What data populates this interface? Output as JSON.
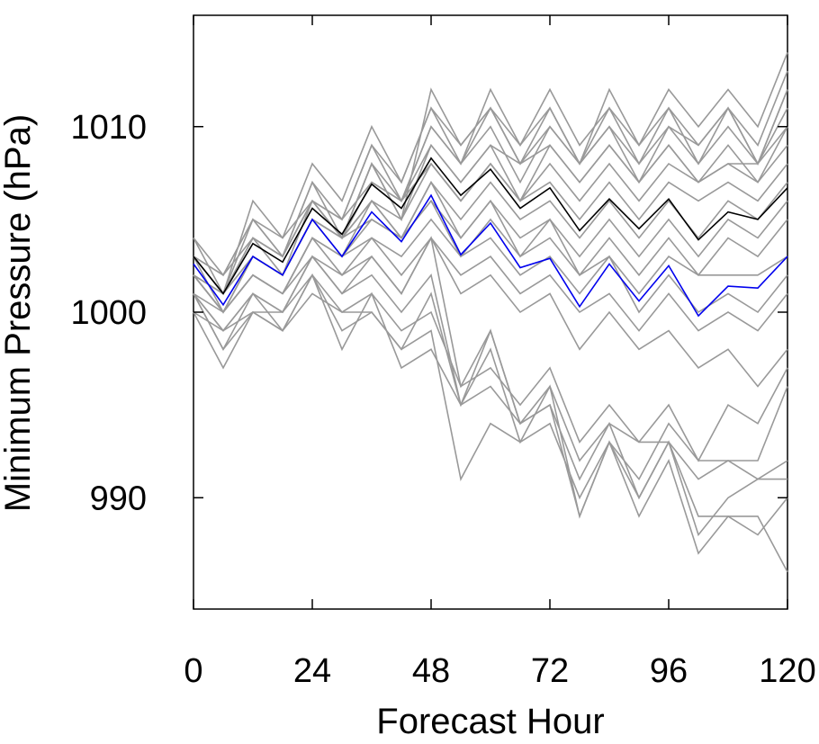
{
  "chart_data": {
    "type": "line",
    "title": "",
    "xlabel": "Forecast Hour",
    "ylabel": "Minimum Pressure (hPa)",
    "xlim": [
      0,
      120
    ],
    "ylim": [
      984,
      1016
    ],
    "xticks": [
      0,
      24,
      48,
      72,
      96,
      120
    ],
    "xtick_labels": [
      "0",
      "24",
      "48",
      "72",
      "96",
      "120"
    ],
    "yticks": [
      990,
      1000,
      1010
    ],
    "ytick_labels": [
      "990",
      "1000",
      "1010"
    ],
    "grid": false,
    "legend": "none",
    "x": [
      0,
      6,
      12,
      18,
      24,
      30,
      36,
      42,
      48,
      54,
      60,
      66,
      72,
      78,
      84,
      90,
      96,
      102,
      108,
      114,
      120
    ],
    "colors": {
      "members": "#999999",
      "mean": "#000000",
      "highlight": "#0000ee"
    },
    "members": [
      {
        "values": [
          1004,
          1001,
          1005,
          1003,
          1007,
          1004,
          1008,
          1005,
          1012,
          1009,
          1011,
          1008,
          1011,
          1008,
          1010,
          1008,
          1011,
          1009,
          1011,
          1009,
          1013
        ]
      },
      {
        "values": [
          1003,
          1001,
          1006,
          1004,
          1006,
          1005,
          1009,
          1007,
          1011,
          1008,
          1012,
          1009,
          1012,
          1009,
          1011,
          1009,
          1012,
          1010,
          1012,
          1010,
          1014
        ]
      },
      {
        "values": [
          1003,
          1002,
          1004,
          1003,
          1006,
          1004,
          1008,
          1006,
          1010,
          1008,
          1010,
          1007,
          1010,
          1008,
          1012,
          1009,
          1011,
          1008,
          1010,
          1008,
          1012
        ]
      },
      {
        "values": [
          1004,
          1002,
          1005,
          1004,
          1008,
          1006,
          1010,
          1007,
          1011,
          1009,
          1011,
          1009,
          1011,
          1008,
          1011,
          1008,
          1010,
          1009,
          1011,
          1008,
          1012
        ]
      },
      {
        "values": [
          1003,
          1002,
          1005,
          1003,
          1007,
          1005,
          1009,
          1006,
          1010,
          1008,
          1011,
          1008,
          1010,
          1008,
          1010,
          1007,
          1010,
          1008,
          1011,
          1008,
          1011
        ]
      },
      {
        "values": [
          1003,
          1001,
          1004,
          1003,
          1006,
          1004,
          1008,
          1005,
          1009,
          1007,
          1009,
          1008,
          1009,
          1007,
          1009,
          1007,
          1009,
          1007,
          1009,
          1007,
          1010
        ]
      },
      {
        "values": [
          1002,
          1001,
          1004,
          1002,
          1006,
          1005,
          1007,
          1006,
          1009,
          1007,
          1009,
          1006,
          1009,
          1007,
          1009,
          1007,
          1009,
          1007,
          1008,
          1008,
          1010
        ]
      },
      {
        "values": [
          1003,
          1001,
          1004,
          1003,
          1006,
          1004,
          1007,
          1006,
          1008,
          1006,
          1008,
          1006,
          1008,
          1006,
          1008,
          1006,
          1008,
          1007,
          1008,
          1007,
          1009
        ]
      },
      {
        "values": [
          1002,
          1001,
          1003,
          1002,
          1005,
          1004,
          1006,
          1005,
          1008,
          1006,
          1008,
          1006,
          1007,
          1005,
          1007,
          1005,
          1007,
          1006,
          1007,
          1006,
          1008
        ]
      },
      {
        "values": [
          1002,
          1000,
          1003,
          1002,
          1005,
          1004,
          1006,
          1004,
          1007,
          1005,
          1007,
          1005,
          1006,
          1004,
          1006,
          1004,
          1006,
          1004,
          1006,
          1005,
          1007
        ]
      },
      {
        "values": [
          1003,
          1000,
          1003,
          1002,
          1005,
          1003,
          1006,
          1004,
          1006,
          1004,
          1006,
          1004,
          1005,
          1003,
          1005,
          1003,
          1005,
          1003,
          1005,
          1004,
          1006
        ]
      },
      {
        "values": [
          1002,
          1000,
          1002,
          1001,
          1004,
          1003,
          1005,
          1004,
          1007,
          1004,
          1006,
          1003,
          1005,
          1002,
          1004,
          1002,
          1004,
          1002,
          1004,
          1003,
          1005
        ]
      },
      {
        "values": [
          1002,
          1001,
          1003,
          1002,
          1005,
          1004,
          1005,
          1004,
          1006,
          1003,
          1005,
          1003,
          1004,
          1002,
          1003,
          1001,
          1003,
          1002,
          1002,
          1002,
          1003
        ]
      },
      {
        "values": [
          1001,
          1000,
          1002,
          1001,
          1004,
          1003,
          1004,
          1003,
          1005,
          1003,
          1004,
          1002,
          1003,
          1001,
          1003,
          1000,
          1002,
          1000,
          1001,
          1000,
          1002
        ]
      },
      {
        "values": [
          1002,
          1000,
          1002,
          1001,
          1004,
          1002,
          1004,
          1002,
          1004,
          1002,
          1003,
          1001,
          1002,
          1000,
          1001,
          999,
          1001,
          999,
          1000,
          999,
          1001
        ]
      },
      {
        "values": [
          1001,
          999,
          1001,
          1000,
          1003,
          1001,
          1003,
          1001,
          1004,
          1001,
          1002,
          1000,
          1001,
          998,
          1000,
          998,
          999,
          997,
          998,
          996,
          998
        ]
      },
      {
        "values": [
          1002,
          1000,
          1002,
          1001,
          1003,
          1002,
          1003,
          1001,
          1004,
          996,
          997,
          995,
          997,
          993,
          995,
          993,
          995,
          992,
          995,
          994,
          997
        ]
      },
      {
        "values": [
          1001,
          999,
          1001,
          1000,
          1003,
          1001,
          1002,
          1000,
          1002,
          995,
          996,
          994,
          996,
          992,
          994,
          993,
          993,
          991,
          992,
          991,
          991
        ]
      },
      {
        "values": [
          1001,
          998,
          1001,
          999,
          1002,
          1000,
          1000,
          998,
          999,
          991,
          994,
          993,
          994,
          990,
          993,
          991,
          994,
          992,
          992,
          992,
          996
        ]
      },
      {
        "values": [
          1000,
          997,
          1000,
          999,
          1002,
          998,
          1001,
          997,
          998,
          995,
          999,
          994,
          995,
          991,
          994,
          990,
          993,
          988,
          990,
          991,
          992
        ]
      },
      {
        "values": [
          1001,
          998,
          1000,
          1000,
          1002,
          999,
          1000,
          998,
          1001,
          995,
          998,
          993,
          996,
          989,
          993,
          989,
          992,
          987,
          989,
          989,
          986
        ]
      },
      {
        "values": [
          1000,
          999,
          1000,
          999,
          1001,
          1000,
          1001,
          999,
          1000,
          996,
          999,
          994,
          995,
          989,
          993,
          990,
          993,
          989,
          989,
          988,
          990
        ]
      }
    ],
    "series": [
      {
        "role": "mean",
        "values": [
          1003,
          1001,
          1003.7,
          1002.7,
          1005.6,
          1004.2,
          1006.9,
          1005.6,
          1008.3,
          1006.3,
          1007.7,
          1005.6,
          1006.7,
          1004.4,
          1006.1,
          1004.5,
          1006.1,
          1003.9,
          1005.4,
          1005,
          1006.7
        ]
      },
      {
        "role": "highlight",
        "values": [
          1002.6,
          1000.4,
          1003,
          1002,
          1005,
          1003,
          1005.4,
          1003.8,
          1006.3,
          1003.1,
          1004.8,
          1002.4,
          1002.9,
          1000.3,
          1002.6,
          1000.6,
          1002.5,
          999.8,
          1001.4,
          1001.3,
          1003.0
        ]
      }
    ]
  }
}
